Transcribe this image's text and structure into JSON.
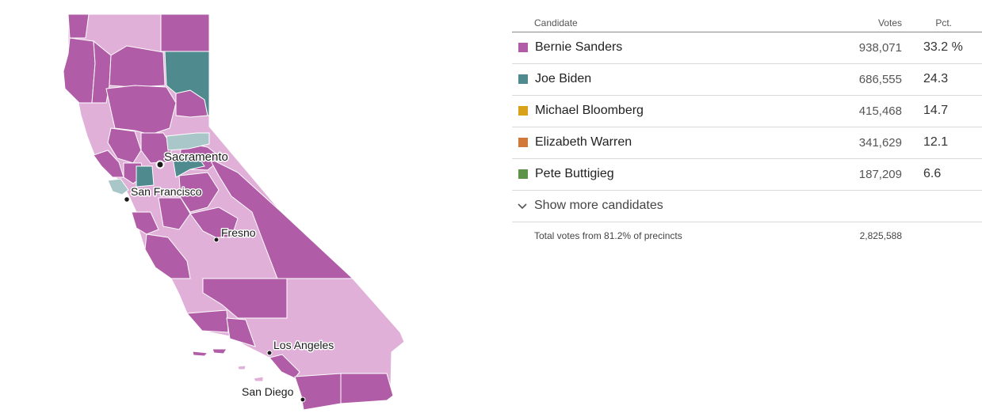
{
  "map": {
    "cities": [
      {
        "name": "Sacramento"
      },
      {
        "name": "San Francisco"
      },
      {
        "name": "Fresno"
      },
      {
        "name": "Los Angeles"
      },
      {
        "name": "San Diego"
      }
    ],
    "colors": {
      "sanders": "#b05ca6",
      "sanders_light": "#e0b0d8",
      "biden": "#4e8a8e",
      "biden_light": "#a9c7c9",
      "border": "#ffffff"
    }
  },
  "table": {
    "headers": {
      "candidate": "Candidate",
      "votes": "Votes",
      "pct": "Pct."
    },
    "rows": [
      {
        "name": "Bernie Sanders",
        "votes": "938,071",
        "pct": "33.2 %",
        "color": "#b05ca6"
      },
      {
        "name": "Joe Biden",
        "votes": "686,555",
        "pct": "24.3",
        "color": "#4e8a8e"
      },
      {
        "name": "Michael Bloomberg",
        "votes": "415,468",
        "pct": "14.7",
        "color": "#d8a21a"
      },
      {
        "name": "Elizabeth Warren",
        "votes": "341,629",
        "pct": "12.1",
        "color": "#d2783a"
      },
      {
        "name": "Pete Buttigieg",
        "votes": "187,209",
        "pct": "6.6",
        "color": "#5e9248"
      }
    ],
    "show_more": "Show more candidates",
    "total_label": "Total votes from 81.2% of precincts",
    "total_value": "2,825,588"
  }
}
